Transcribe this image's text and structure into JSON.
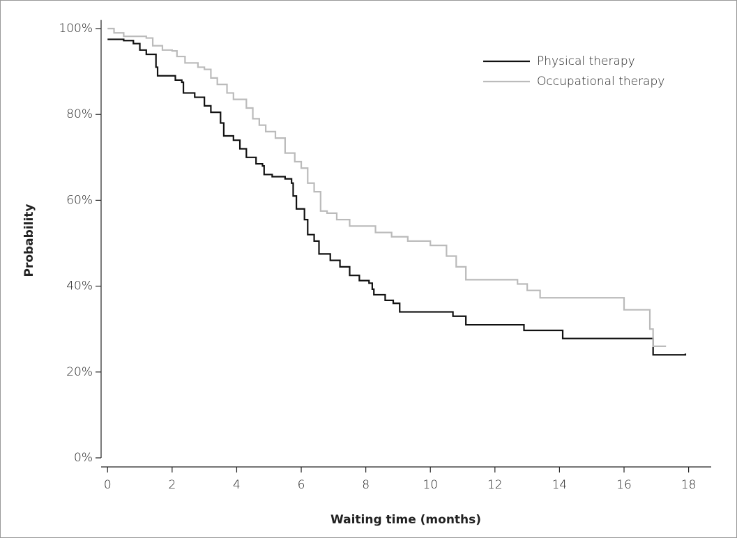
{
  "chart_data": {
    "type": "step",
    "x_label": "Waiting time (months)",
    "y_label": "Probability",
    "xlim": [
      -0.2,
      18.7
    ],
    "xticks": [
      0,
      2,
      4,
      6,
      8,
      10,
      12,
      14,
      16,
      18
    ],
    "ylim": [
      0,
      102
    ],
    "yticks": [
      {
        "value": 0,
        "label": "0%"
      },
      {
        "value": 20,
        "label": "20%"
      },
      {
        "value": 40,
        "label": "40%"
      },
      {
        "value": 60,
        "label": "60%"
      },
      {
        "value": 80,
        "label": "80%"
      },
      {
        "value": 100,
        "label": "100%"
      }
    ],
    "grid": false,
    "legend": "top-right",
    "series": [
      {
        "name": "Physical therapy",
        "color": "#111111",
        "x": [
          0,
          0.5,
          0.8,
          1.0,
          1.2,
          1.5,
          1.55,
          2.1,
          2.3,
          2.35,
          2.7,
          3.0,
          3.2,
          3.5,
          3.6,
          3.9,
          4.1,
          4.3,
          4.6,
          4.8,
          4.85,
          5.1,
          5.5,
          5.7,
          5.75,
          5.85,
          6.1,
          6.2,
          6.4,
          6.55,
          6.9,
          7.2,
          7.5,
          7.8,
          8.1,
          8.2,
          8.25,
          8.6,
          8.85,
          9.05,
          10.5,
          10.7,
          11.1,
          12.9,
          14.1,
          16.9,
          17.9
        ],
        "values": [
          97.5,
          97.2,
          96.5,
          95,
          94,
          91,
          89,
          88,
          87.5,
          85,
          84,
          82,
          80.5,
          78,
          75,
          74,
          72,
          70,
          68.5,
          68,
          66,
          65.5,
          65,
          64,
          61,
          58,
          55.5,
          52,
          50.5,
          47.5,
          46,
          44.5,
          42.5,
          41.3,
          40.7,
          39.3,
          38,
          36.7,
          36,
          34,
          34,
          33,
          31,
          29.7,
          27.8,
          24,
          24.3
        ]
      },
      {
        "name": "Occupational therapy",
        "color": "#bbbbbb",
        "x": [
          0,
          0.2,
          0.5,
          1.2,
          1.4,
          1.7,
          2.0,
          2.15,
          2.4,
          2.8,
          3.0,
          3.2,
          3.4,
          3.7,
          3.9,
          4.3,
          4.5,
          4.7,
          4.9,
          5.2,
          5.5,
          5.8,
          6.0,
          6.2,
          6.4,
          6.6,
          6.8,
          7.1,
          7.5,
          8.3,
          8.8,
          9.3,
          10.0,
          10.5,
          10.8,
          11.1,
          12.7,
          13.0,
          13.4,
          16.0,
          16.8,
          16.9,
          17.3
        ],
        "values": [
          100,
          99,
          98.2,
          97.8,
          96,
          95,
          94.8,
          93.5,
          92,
          91,
          90.5,
          88.5,
          87,
          85,
          83.5,
          81.5,
          79,
          77.5,
          76,
          74.5,
          71,
          69,
          67.5,
          64,
          62,
          57.5,
          57,
          55.5,
          54,
          52.5,
          51.5,
          50.5,
          49.5,
          47,
          44.5,
          41.5,
          40.5,
          39,
          37.3,
          34.5,
          30,
          26,
          26
        ]
      }
    ]
  }
}
